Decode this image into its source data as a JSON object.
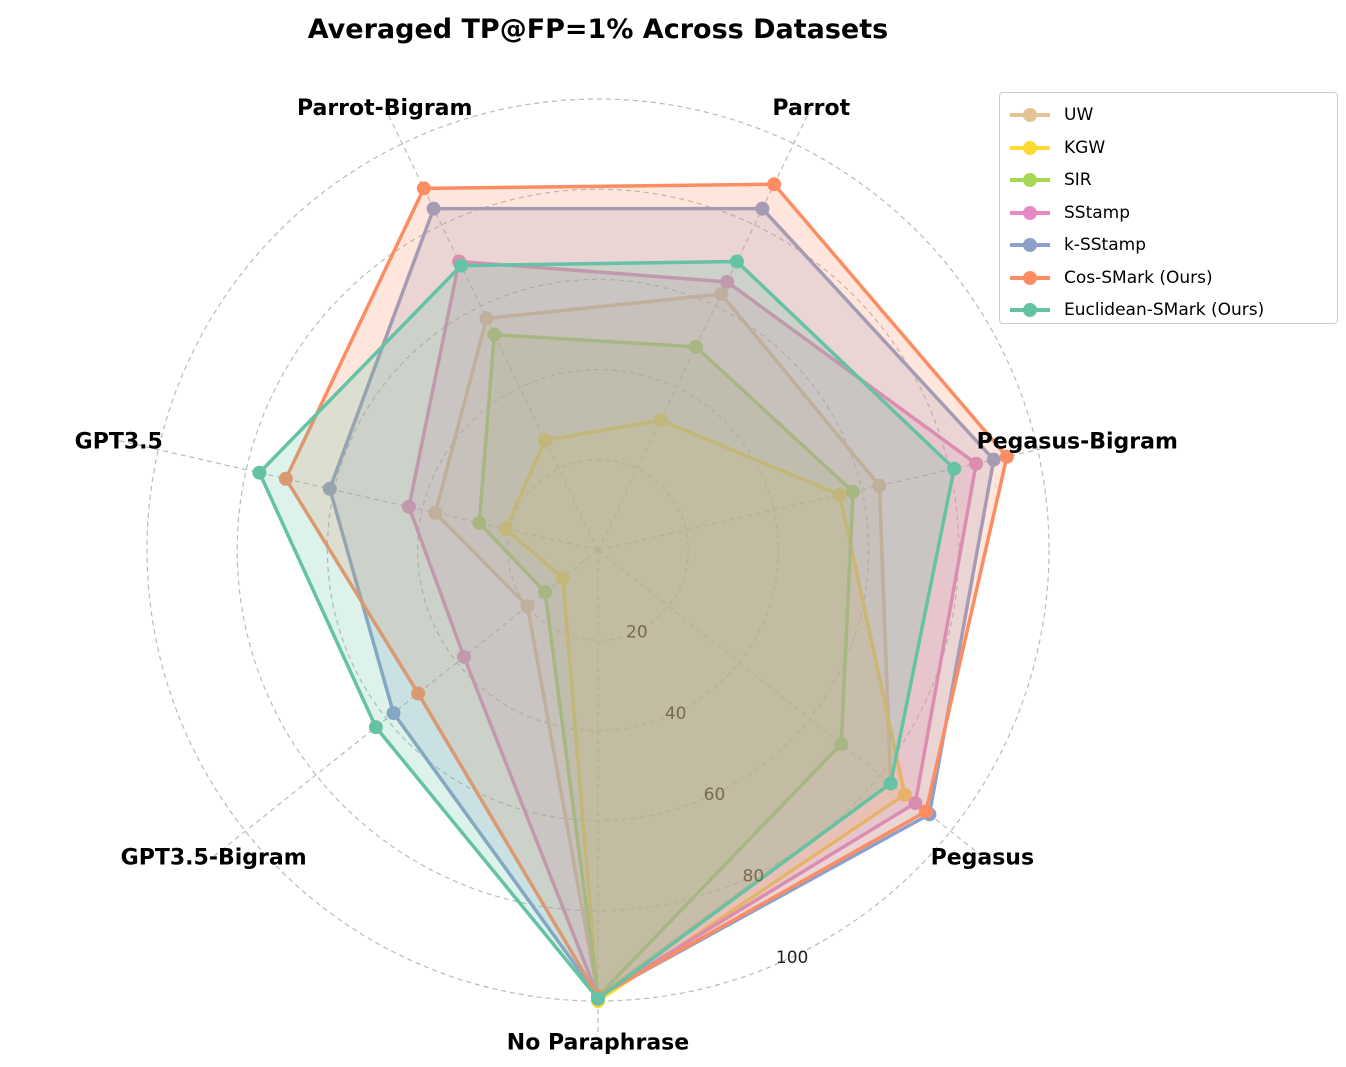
{
  "chart_data": {
    "type": "radar",
    "title": "Averaged TP@FP=1% Across Datasets",
    "axes": [
      "No Paraphrase",
      "Pegasus",
      "Pegasus-Bigram",
      "Parrot",
      "Parrot-Bigram",
      "GPT3.5",
      "GPT3.5-Bigram"
    ],
    "rlim": [
      0,
      100
    ],
    "rticks": [
      "20",
      "40",
      "60",
      "80",
      "100"
    ],
    "grid": true,
    "legend_position": "top-right",
    "series": [
      {
        "name": "UW",
        "color": "#e5c494",
        "values": [
          99,
          83,
          64,
          63,
          57,
          37,
          20
        ]
      },
      {
        "name": "KGW",
        "color": "#ffd92f",
        "values": [
          100,
          87,
          55,
          32,
          27,
          21,
          10
        ]
      },
      {
        "name": "SIR",
        "color": "#a6d854",
        "values": [
          99,
          69,
          58,
          50,
          53,
          27,
          15
        ]
      },
      {
        "name": "SStamp",
        "color": "#e78ac3",
        "values": [
          99,
          90,
          86,
          66,
          71,
          43,
          38
        ]
      },
      {
        "name": "k-SStamp",
        "color": "#8da0cb",
        "values": [
          99,
          94,
          90,
          84,
          84,
          61,
          58
        ]
      },
      {
        "name": "Cos-SMark (Ours)",
        "color": "#fc8d62",
        "values": [
          99,
          93,
          93,
          90,
          89,
          71,
          51
        ]
      },
      {
        "name": "Euclidean-SMark (Ours)",
        "color": "#66c2a5",
        "values": [
          99.5,
          83,
          81,
          71,
          70,
          77,
          63
        ]
      }
    ]
  }
}
